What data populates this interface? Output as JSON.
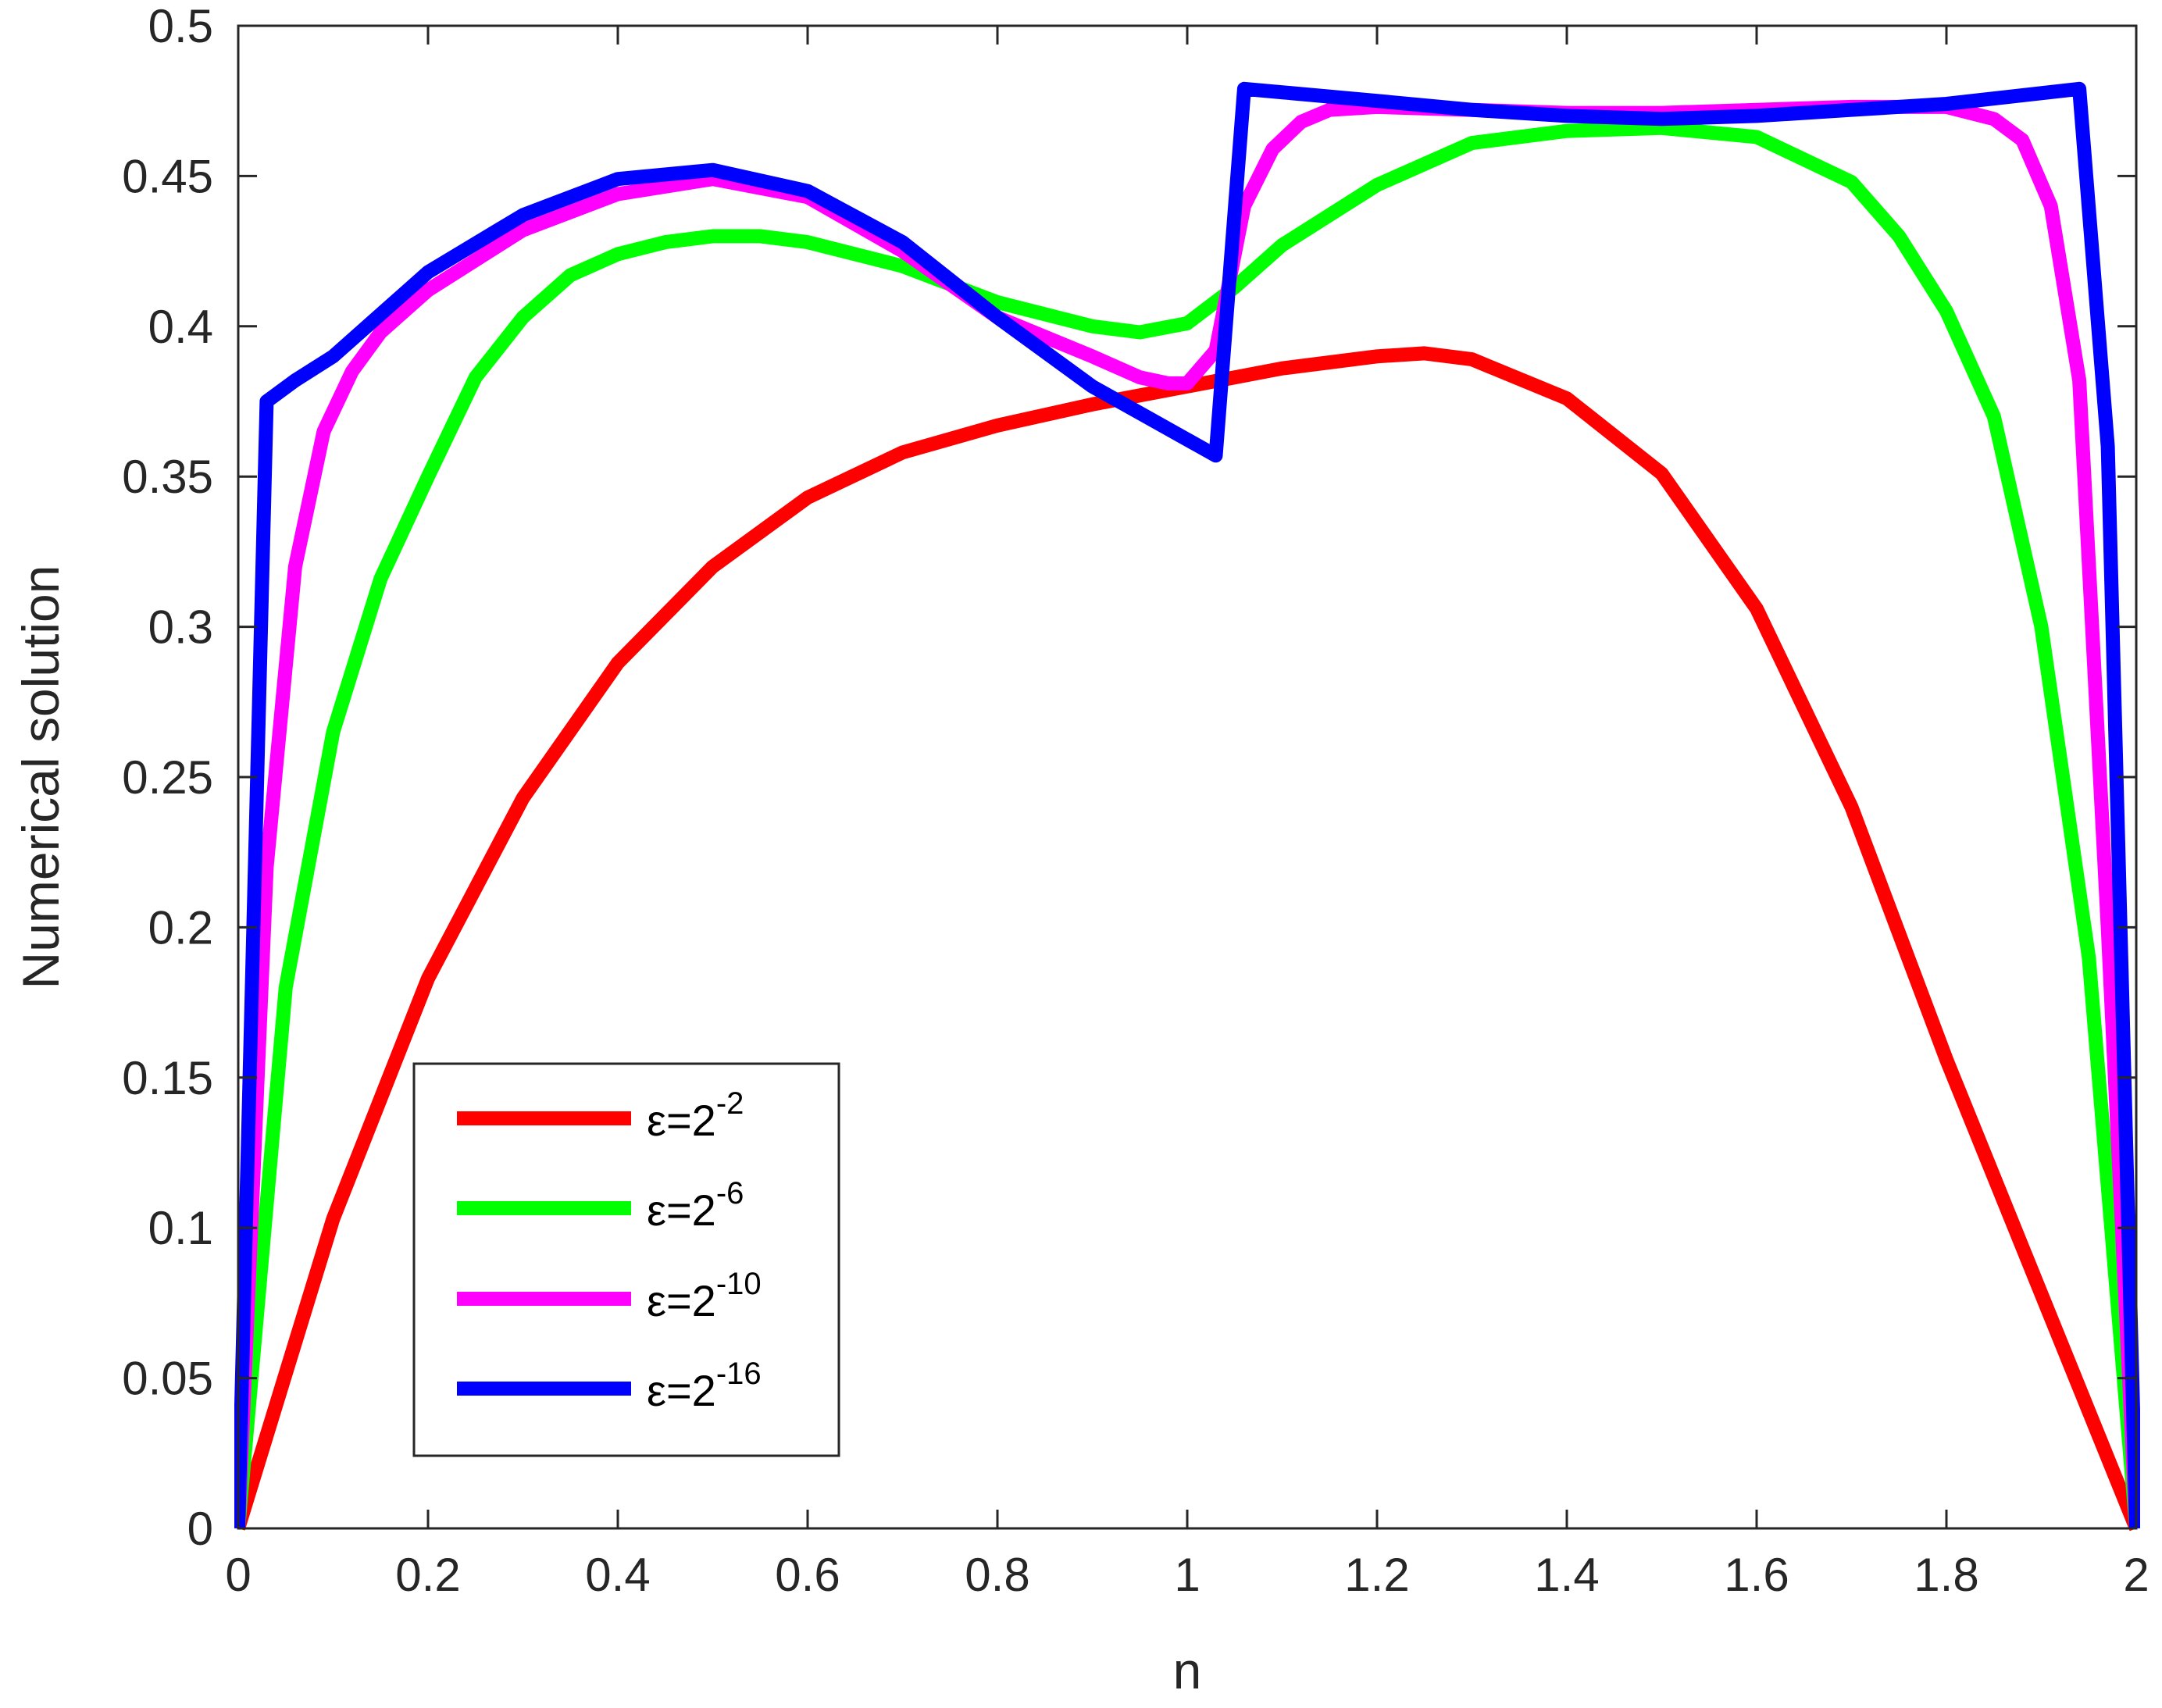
{
  "chart_data": {
    "type": "line",
    "title": "",
    "xlabel": "n",
    "ylabel": "Numerical solution",
    "xlim": [
      0,
      2
    ],
    "ylim": [
      0,
      0.5
    ],
    "xticks": [
      "0",
      "0.2",
      "0.4",
      "0.6",
      "0.8",
      "1",
      "1.2",
      "1.4",
      "1.6",
      "1.8",
      "2"
    ],
    "yticks": [
      "0",
      "0.05",
      "0.1",
      "0.15",
      "0.2",
      "0.25",
      "0.3",
      "0.35",
      "0.4",
      "0.45",
      "0.5"
    ],
    "grid": false,
    "legend_position": "bottom-left",
    "series": [
      {
        "name": "ε=2",
        "name_sup": "-2",
        "color": "#ff0000",
        "x": [
          0,
          0.1,
          0.2,
          0.3,
          0.4,
          0.5,
          0.6,
          0.7,
          0.8,
          0.9,
          1.0,
          1.1,
          1.2,
          1.25,
          1.3,
          1.4,
          1.5,
          1.6,
          1.7,
          1.8,
          1.9,
          2.0
        ],
        "y": [
          0,
          0.103,
          0.183,
          0.243,
          0.288,
          0.32,
          0.343,
          0.358,
          0.367,
          0.374,
          0.38,
          0.386,
          0.39,
          0.391,
          0.389,
          0.376,
          0.351,
          0.306,
          0.24,
          0.156,
          0.078,
          0
        ]
      },
      {
        "name": "ε=2",
        "name_sup": "-6",
        "color": "#00ff00",
        "x": [
          0,
          0.05,
          0.1,
          0.15,
          0.2,
          0.25,
          0.3,
          0.35,
          0.4,
          0.45,
          0.5,
          0.55,
          0.6,
          0.7,
          0.8,
          0.9,
          0.95,
          1.0,
          1.05,
          1.1,
          1.2,
          1.3,
          1.4,
          1.5,
          1.6,
          1.7,
          1.75,
          1.8,
          1.85,
          1.9,
          1.95,
          2.0
        ],
        "y": [
          0,
          0.18,
          0.265,
          0.316,
          0.35,
          0.383,
          0.403,
          0.417,
          0.424,
          0.428,
          0.43,
          0.43,
          0.428,
          0.42,
          0.408,
          0.4,
          0.398,
          0.401,
          0.413,
          0.427,
          0.447,
          0.461,
          0.465,
          0.466,
          0.463,
          0.448,
          0.43,
          0.405,
          0.37,
          0.3,
          0.19,
          0
        ]
      },
      {
        "name": "ε=2",
        "name_sup": "-10",
        "color": "#ff00ff",
        "x": [
          0,
          0.03,
          0.06,
          0.09,
          0.12,
          0.15,
          0.2,
          0.3,
          0.4,
          0.5,
          0.6,
          0.7,
          0.8,
          0.9,
          0.95,
          0.98,
          1.0,
          1.03,
          1.06,
          1.09,
          1.12,
          1.15,
          1.2,
          1.3,
          1.4,
          1.5,
          1.6,
          1.7,
          1.8,
          1.85,
          1.88,
          1.91,
          1.94,
          1.97,
          2.0
        ],
        "y": [
          0,
          0.22,
          0.32,
          0.365,
          0.385,
          0.398,
          0.412,
          0.432,
          0.444,
          0.449,
          0.443,
          0.425,
          0.403,
          0.39,
          0.383,
          0.381,
          0.381,
          0.392,
          0.44,
          0.459,
          0.468,
          0.472,
          0.473,
          0.472,
          0.471,
          0.471,
          0.472,
          0.473,
          0.473,
          0.469,
          0.462,
          0.44,
          0.382,
          0.2,
          0
        ]
      },
      {
        "name": "ε=2",
        "name_sup": "-16",
        "color": "#0000ff",
        "x": [
          0,
          0.03,
          0.06,
          0.1,
          0.2,
          0.3,
          0.4,
          0.5,
          0.6,
          0.7,
          0.8,
          0.9,
          1.03,
          1.06,
          1.2,
          1.3,
          1.4,
          1.5,
          1.6,
          1.7,
          1.8,
          1.94,
          1.97,
          2.0
        ],
        "y": [
          0,
          0.375,
          0.382,
          0.39,
          0.418,
          0.437,
          0.449,
          0.452,
          0.445,
          0.428,
          0.403,
          0.38,
          0.357,
          0.479,
          0.475,
          0.472,
          0.47,
          0.469,
          0.47,
          0.472,
          0.474,
          0.479,
          0.36,
          0
        ]
      }
    ]
  }
}
